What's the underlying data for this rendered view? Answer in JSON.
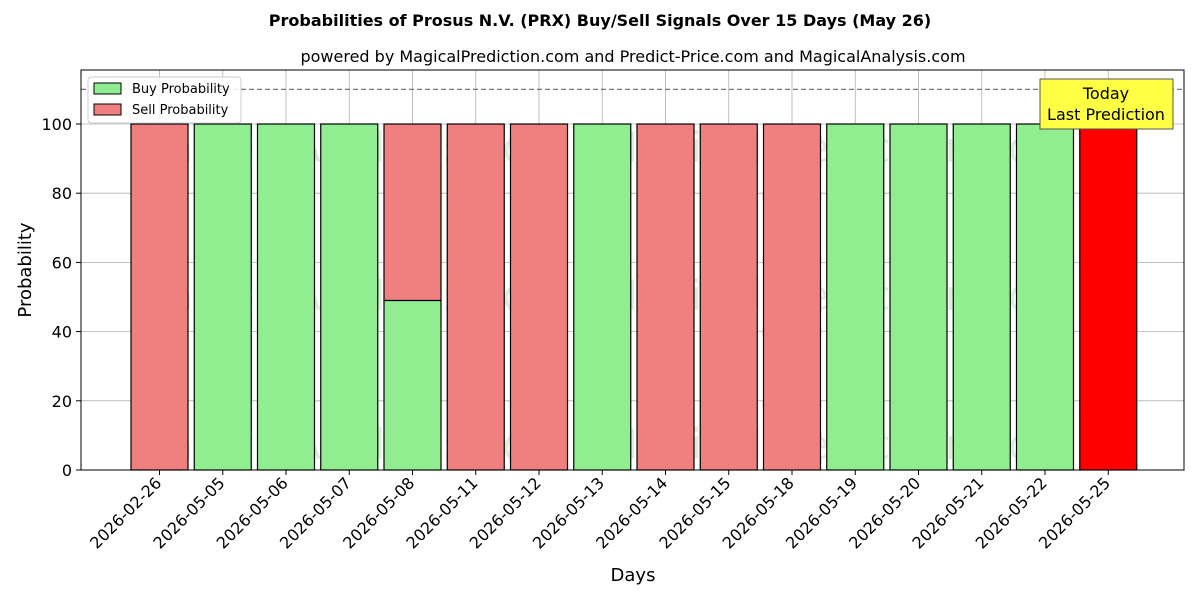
{
  "chart_data": {
    "type": "bar",
    "title": "Probabilities of Prosus N.V. (PRX) Buy/Sell Signals Over 15 Days (May 26)",
    "subtitle": "powered by MagicalPrediction.com and Predict-Price.com and MagicalAnalysis.com",
    "xlabel": "Days",
    "ylabel": "Probability",
    "ylim": [
      0,
      115
    ],
    "yticks": [
      0,
      20,
      40,
      60,
      80,
      100
    ],
    "grid": true,
    "legend_position": "top-left",
    "reference_line": 110,
    "categories": [
      "2026-02-26",
      "2026-05-05",
      "2026-05-06",
      "2026-05-07",
      "2026-05-08",
      "2026-05-11",
      "2026-05-12",
      "2026-05-13",
      "2026-05-14",
      "2026-05-15",
      "2026-05-18",
      "2026-05-19",
      "2026-05-20",
      "2026-05-21",
      "2026-05-22",
      "2026-05-25"
    ],
    "series": [
      {
        "name": "Buy Probability",
        "color": "#90ee90",
        "values": [
          0,
          100,
          100,
          100,
          49,
          0,
          0,
          100,
          0,
          0,
          0,
          100,
          100,
          100,
          100,
          0
        ]
      },
      {
        "name": "Sell Probability",
        "color": "#f08080",
        "values": [
          100,
          0,
          0,
          0,
          51,
          100,
          100,
          0,
          100,
          100,
          100,
          0,
          0,
          0,
          0,
          100
        ]
      }
    ],
    "highlight": {
      "index": 15,
      "color": "#ff0000"
    },
    "annotation": {
      "line1": "Today",
      "line2": "Last Prediction",
      "background": "#ffff44"
    },
    "watermarks": [
      "MagicalAnalysis.com",
      "MagicalPrediction.com"
    ]
  }
}
